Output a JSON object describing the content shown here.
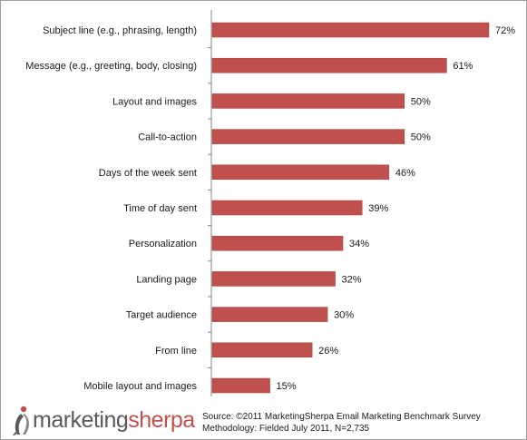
{
  "chart_data": {
    "type": "bar",
    "orientation": "horizontal",
    "categories": [
      "Subject line (e.g., phrasing, length)",
      "Message (e.g., greeting, body, closing)",
      "Layout and images",
      "Call-to-action",
      "Days of the week sent",
      "Time of day sent",
      "Personalization",
      "Landing page",
      "Target audience",
      "From line",
      "Mobile layout and images"
    ],
    "values": [
      72,
      61,
      50,
      50,
      46,
      39,
      34,
      32,
      30,
      26,
      15
    ],
    "value_labels": [
      "72%",
      "61%",
      "50%",
      "50%",
      "46%",
      "39%",
      "34%",
      "32%",
      "30%",
      "26%",
      "15%"
    ],
    "xlim": [
      0,
      80
    ],
    "grid": false,
    "legend": "none",
    "bar_color": "#c0504d"
  },
  "logo": {
    "word1": "marketing",
    "word2": "sherpa",
    "word1_color": "#5a5a5a",
    "word2_color": "#c0504d",
    "icon": "sherpa-figure-logo-icon"
  },
  "source": {
    "line1": "Source: ©2011 MarketingSherpa Email Marketing Benchmark Survey",
    "line2": "Methodology: Fielded July 2011, N=2,735"
  }
}
